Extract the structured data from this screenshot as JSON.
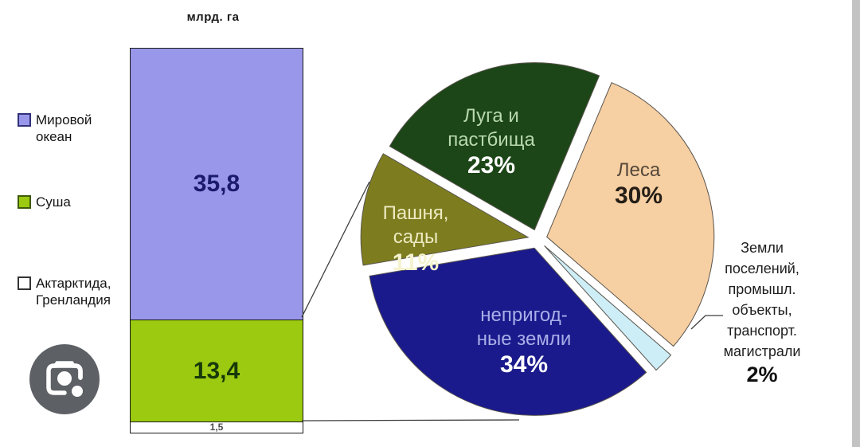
{
  "ui": {
    "lens_icon": "camera-lens-icon",
    "accent_gray": "#5d6065"
  },
  "legend": {
    "items": [
      {
        "label_lines": [
          "Мировой",
          "океан"
        ],
        "color": "#9897e9"
      },
      {
        "label_lines": [
          "Суша"
        ],
        "color": "#9bca10"
      },
      {
        "label_lines": [
          "Актарктида,",
          "Гренландия"
        ],
        "color": "#ffffff"
      }
    ]
  },
  "chart_data": [
    {
      "type": "bar",
      "title": "млрд. га",
      "stacked": true,
      "ylabel": "млрд. га",
      "segments": [
        {
          "label": "Мировой океан",
          "value": 35.8,
          "value_label": "35,8",
          "color": "#9897e9",
          "text_color": "#1b1b6d"
        },
        {
          "label": "Суша",
          "value": 13.4,
          "value_label": "13,4",
          "color": "#9bca10",
          "text_color": "#17380a"
        },
        {
          "label": "Актарктида, Гренландия",
          "value": 1.5,
          "value_label": "1,5",
          "color": "#ffffff",
          "text_color": "#4a4a4a"
        }
      ]
    },
    {
      "type": "pie",
      "subject": "Суша",
      "start_bearing_deg": 300,
      "clockwise": true,
      "exploded": true,
      "slices": [
        {
          "label_lines": [
            "Луга и",
            "пастбища"
          ],
          "pct": 23,
          "pct_label": "23%",
          "color": "#1c4617",
          "label_color": "#b9d8ae",
          "pct_color": "#ffffff",
          "label_outside": false
        },
        {
          "label_lines": [
            "Леса"
          ],
          "pct": 30,
          "pct_label": "30%",
          "color": "#f6cfa2",
          "label_color": "#55483b",
          "pct_color": "#241e17",
          "label_outside": false
        },
        {
          "label_lines": [
            "Земли",
            "поселений,",
            "промышл.",
            "объекты,",
            "транспорт.",
            "магистрали"
          ],
          "pct": 2,
          "pct_label": "2%",
          "color": "#cdeef6",
          "label_color": "#1e1e1e",
          "pct_color": "#101010",
          "label_outside": true
        },
        {
          "label_lines": [
            "непригод-",
            "ные земли"
          ],
          "pct": 34,
          "pct_label": "34%",
          "color": "#1a1a8c",
          "label_color": "#a9aee8",
          "pct_color": "#ffffff",
          "label_outside": false
        },
        {
          "label_lines": [
            "Пашня,",
            "сады"
          ],
          "pct": 11,
          "pct_label": "11%",
          "color": "#7d7d1f",
          "label_color": "#eeeac2",
          "pct_color": "#f5f2cf",
          "label_outside": false
        }
      ]
    }
  ]
}
